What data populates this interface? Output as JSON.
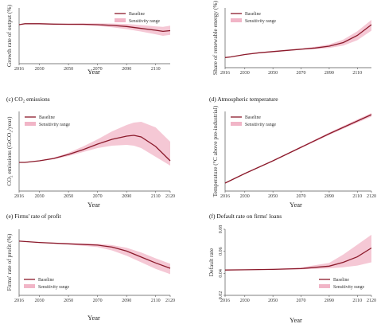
{
  "colors": {
    "baseline": "#8b1a2b",
    "band": "#f1b5c7",
    "axis": "#555555"
  },
  "legend": {
    "baseline": "Baseline",
    "sensitivity": "Sensitivity range"
  },
  "chart_data": [
    {
      "id": "a",
      "type": "line",
      "title": "",
      "xlabel": "Year",
      "ylabel": "Growth rate of output (%)",
      "legend_position": "top-right",
      "xlim": [
        2016,
        2120
      ],
      "ylim": [
        0,
        3
      ],
      "x_ticks": [
        "2016",
        "2030",
        "2050",
        "2070",
        "2090",
        "2110"
      ],
      "x_tick_values": [
        2016,
        2030,
        2050,
        2070,
        2090,
        2110
      ],
      "y_ticks": [],
      "y_tick_values": [],
      "x": [
        2016,
        2020,
        2030,
        2040,
        2050,
        2060,
        2070,
        2080,
        2090,
        2100,
        2110,
        2115,
        2120
      ],
      "series": [
        {
          "name": "Baseline",
          "values": [
            2.1,
            2.15,
            2.15,
            2.13,
            2.12,
            2.12,
            2.1,
            2.06,
            2.0,
            1.9,
            1.8,
            1.74,
            1.78
          ]
        },
        {
          "name": "Sensitivity range",
          "lower": [
            2.1,
            2.13,
            2.12,
            2.1,
            2.08,
            2.07,
            2.03,
            1.96,
            1.86,
            1.73,
            1.58,
            1.5,
            1.55
          ],
          "upper": [
            2.1,
            2.17,
            2.18,
            2.16,
            2.16,
            2.17,
            2.17,
            2.16,
            2.14,
            2.08,
            2.01,
            1.98,
            2.05
          ]
        }
      ]
    },
    {
      "id": "b",
      "type": "line",
      "title": "",
      "xlabel": "",
      "ylabel": "Share of renewable energy (%)",
      "legend_position": "top-left",
      "xlim": [
        2016,
        2120
      ],
      "ylim": [
        0,
        100
      ],
      "x_ticks": [
        "2016",
        "2030",
        "2050",
        "2070",
        "2090",
        "2110"
      ],
      "x_tick_values": [
        2016,
        2030,
        2050,
        2070,
        2090,
        2110
      ],
      "y_ticks": [],
      "y_tick_values": [],
      "x": [
        2016,
        2020,
        2030,
        2040,
        2050,
        2060,
        2070,
        2080,
        2090,
        2100,
        2110,
        2120
      ],
      "series": [
        {
          "name": "Baseline",
          "values": [
            17,
            18,
            22,
            25,
            27,
            29,
            31,
            33,
            36,
            42,
            54,
            72
          ]
        },
        {
          "name": "Sensitivity range",
          "lower": [
            17,
            18,
            21.5,
            24,
            26,
            28,
            30,
            31,
            33,
            37,
            46,
            62
          ],
          "upper": [
            17,
            18,
            22.5,
            25.5,
            28,
            30,
            32,
            35,
            39,
            47,
            61,
            80
          ]
        }
      ]
    },
    {
      "id": "c",
      "type": "line",
      "title": "(c) CO₂ emissions",
      "xlabel": "Year",
      "ylabel": "CO₂ emissions (GtCO₂/year)",
      "legend_position": "top-left",
      "xlim": [
        2016,
        2120
      ],
      "ylim": [
        0,
        100
      ],
      "x_ticks": [
        "2016",
        "2030",
        "2050",
        "2070",
        "2090",
        "2110",
        "2120"
      ],
      "x_tick_values": [
        2016,
        2030,
        2050,
        2070,
        2090,
        2110,
        2120
      ],
      "y_ticks": [],
      "y_tick_values": [],
      "x": [
        2016,
        2020,
        2030,
        2040,
        2050,
        2060,
        2070,
        2080,
        2090,
        2095,
        2100,
        2110,
        2120
      ],
      "series": [
        {
          "name": "Baseline",
          "values": [
            36,
            36,
            38,
            41,
            46,
            52,
            59,
            65,
            69,
            70,
            68,
            56,
            38
          ]
        },
        {
          "name": "Sensitivity range",
          "lower": [
            36,
            36,
            37.5,
            40,
            44,
            49,
            54,
            57,
            58,
            57,
            54,
            43,
            32
          ],
          "upper": [
            36,
            36,
            38.5,
            42,
            48,
            56,
            65,
            75,
            83,
            86,
            87,
            80,
            62
          ]
        }
      ]
    },
    {
      "id": "d",
      "type": "line",
      "title": "(d) Atmospheric temperature",
      "xlabel": "Year",
      "ylabel": "Temperature (°C above pre-industrial)",
      "legend_position": "top-left",
      "xlim": [
        2016,
        2120
      ],
      "ylim": [
        0,
        100
      ],
      "x_ticks": [
        "2016",
        "2030",
        "2050",
        "2070",
        "2090",
        "2110",
        "2120"
      ],
      "x_tick_values": [
        2016,
        2030,
        2050,
        2070,
        2090,
        2110,
        2120
      ],
      "y_ticks": [],
      "y_tick_values": [],
      "x": [
        2016,
        2030,
        2050,
        2070,
        2090,
        2110,
        2120
      ],
      "series": [
        {
          "name": "Baseline",
          "values": [
            10,
            22,
            38,
            55,
            72,
            88,
            96
          ]
        },
        {
          "name": "Sensitivity range",
          "lower": [
            10,
            21.8,
            37.5,
            54,
            70.5,
            86,
            93.5
          ],
          "upper": [
            10,
            22.2,
            38.5,
            56,
            73.5,
            90,
            98
          ]
        }
      ]
    },
    {
      "id": "e",
      "type": "line",
      "title": "(e) Firms' rate of profit",
      "xlabel": "Year",
      "ylabel": "Firms' rate of profit (%)",
      "legend_position": "bottom-left",
      "xlim": [
        2016,
        2120
      ],
      "ylim": [
        0,
        100
      ],
      "x_ticks": [
        "2016",
        "2030",
        "2050",
        "2070",
        "2090",
        "2110",
        "2120"
      ],
      "x_tick_values": [
        2016,
        2030,
        2050,
        2070,
        2090,
        2110,
        2120
      ],
      "y_ticks": [],
      "y_tick_values": [],
      "x": [
        2016,
        2030,
        2050,
        2070,
        2080,
        2090,
        2100,
        2110,
        2120
      ],
      "series": [
        {
          "name": "Baseline",
          "values": [
            82,
            80,
            78,
            76,
            73,
            67,
            58,
            49,
            41
          ]
        },
        {
          "name": "Sensitivity range",
          "lower": [
            82,
            79.5,
            77,
            73,
            68,
            60,
            50,
            40,
            32
          ],
          "upper": [
            82,
            80.5,
            79,
            78,
            76,
            72,
            65,
            56,
            48
          ]
        }
      ]
    },
    {
      "id": "f",
      "type": "line",
      "title": "(f) Default rate on firms' loans",
      "xlabel": "Year",
      "ylabel": "Default rate",
      "legend_position": "bottom-right",
      "xlim": [
        2016,
        2120
      ],
      "ylim": [
        0.02,
        0.08
      ],
      "x_ticks": [
        "2016",
        "2030",
        "2050",
        "2070",
        "2090",
        "2110",
        "2120"
      ],
      "x_tick_values": [
        2016,
        2030,
        2050,
        2070,
        2090,
        2110,
        2120
      ],
      "y_ticks": [
        "0.02",
        "0.04",
        "0.06",
        "0.08"
      ],
      "y_tick_values": [
        0.02,
        0.04,
        0.06,
        0.08
      ],
      "x": [
        2016,
        2030,
        2050,
        2070,
        2090,
        2100,
        2110,
        2120
      ],
      "series": [
        {
          "name": "Baseline",
          "values": [
            0.043,
            0.0432,
            0.0436,
            0.0443,
            0.0465,
            0.05,
            0.055,
            0.063
          ]
        },
        {
          "name": "Sensitivity range",
          "lower": [
            0.043,
            0.043,
            0.0432,
            0.0436,
            0.0445,
            0.0455,
            0.047,
            0.05
          ],
          "upper": [
            0.043,
            0.0434,
            0.044,
            0.0452,
            0.0495,
            0.057,
            0.066,
            0.075
          ]
        }
      ]
    }
  ]
}
